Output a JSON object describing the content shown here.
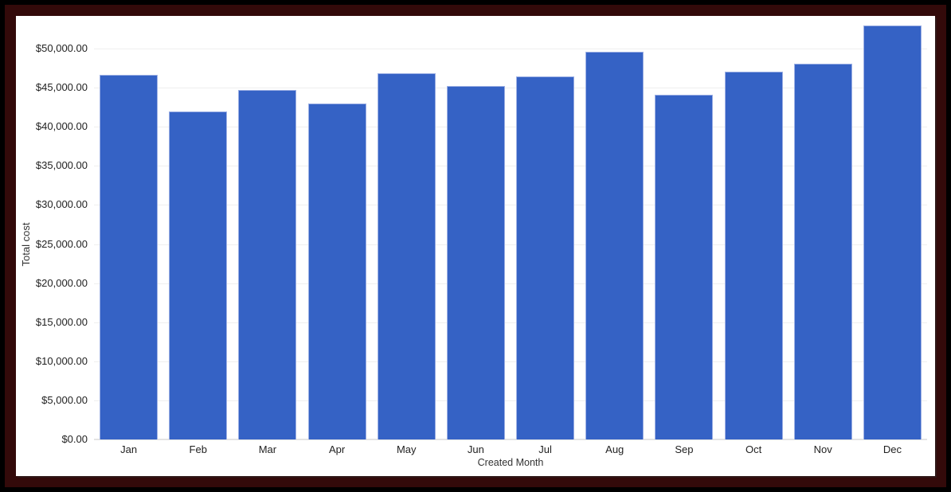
{
  "frame": {
    "outer_border_color": "#000000",
    "inner_border_color": "#330a0a",
    "canvas_background": "#ffffff"
  },
  "chart_data": {
    "type": "bar",
    "title": "",
    "xlabel": "Created Month",
    "ylabel": "Total cost",
    "categories": [
      "Jan",
      "Feb",
      "Mar",
      "Apr",
      "May",
      "Jun",
      "Jul",
      "Aug",
      "Sep",
      "Oct",
      "Nov",
      "Dec"
    ],
    "values": [
      46600,
      42000,
      44700,
      43000,
      46800,
      45200,
      46400,
      49600,
      44100,
      47000,
      48100,
      53000
    ],
    "ylim": [
      0,
      50000
    ],
    "ytick_step": 5000,
    "ytick_labels": [
      "$0.00",
      "$5,000.00",
      "$10,000.00",
      "$15,000.00",
      "$20,000.00",
      "$25,000.00",
      "$30,000.00",
      "$35,000.00",
      "$40,000.00",
      "$45,000.00",
      "$50,000.00"
    ],
    "bar_color": "#3562c5",
    "bar_border_color": "#9db0e4",
    "gridline_color": "#efefef",
    "axis_line_color": "#e4e4e4",
    "tick_label_color": "#1f1f1f",
    "grid": true,
    "legend": "none"
  }
}
